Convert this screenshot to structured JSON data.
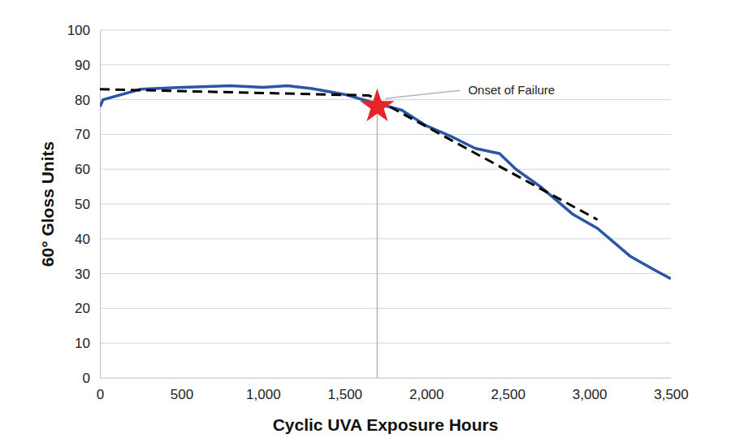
{
  "chart_data": {
    "type": "line",
    "x_label": "Cyclic UVA Exposure Hours",
    "y_label": "60° Gloss Units",
    "xlim": [
      0,
      3500
    ],
    "ylim": [
      0,
      100
    ],
    "xticks": [
      0,
      500,
      {
        "value": 1000,
        "label": "1,000"
      },
      {
        "value": 1500,
        "label": "1,500"
      },
      {
        "value": 2000,
        "label": "2,000"
      },
      {
        "value": 2500,
        "label": "2,500"
      },
      {
        "value": 3000,
        "label": "3,000"
      },
      {
        "value": 3500,
        "label": "3,500"
      }
    ],
    "yticks": [
      0,
      10,
      20,
      30,
      40,
      50,
      60,
      70,
      80,
      90,
      100
    ],
    "grid": true,
    "series": [
      {
        "color": "#2a56a5",
        "line_style": "solid",
        "x": [
          0,
          20,
          250,
          500,
          800,
          1000,
          1150,
          1300,
          1500,
          1650,
          1850,
          2000,
          2150,
          2300,
          2450,
          2550,
          2700,
          2900,
          3050,
          3250,
          3400,
          3500
        ],
        "values": [
          78,
          80,
          83,
          83.5,
          84,
          83.5,
          84,
          83.2,
          81.5,
          79.5,
          77,
          72.5,
          69.5,
          66,
          64.5,
          60,
          55,
          47,
          43,
          35,
          31,
          28.5
        ]
      },
      {
        "color": "#000000",
        "line_style": "dashed",
        "x": [
          0,
          1650,
          3050
        ],
        "values": [
          83,
          81.2,
          45.5
        ]
      }
    ],
    "annotations": [
      {
        "text": "Onset of Failure",
        "x": 1700,
        "y": 78,
        "marker": "star"
      }
    ]
  }
}
